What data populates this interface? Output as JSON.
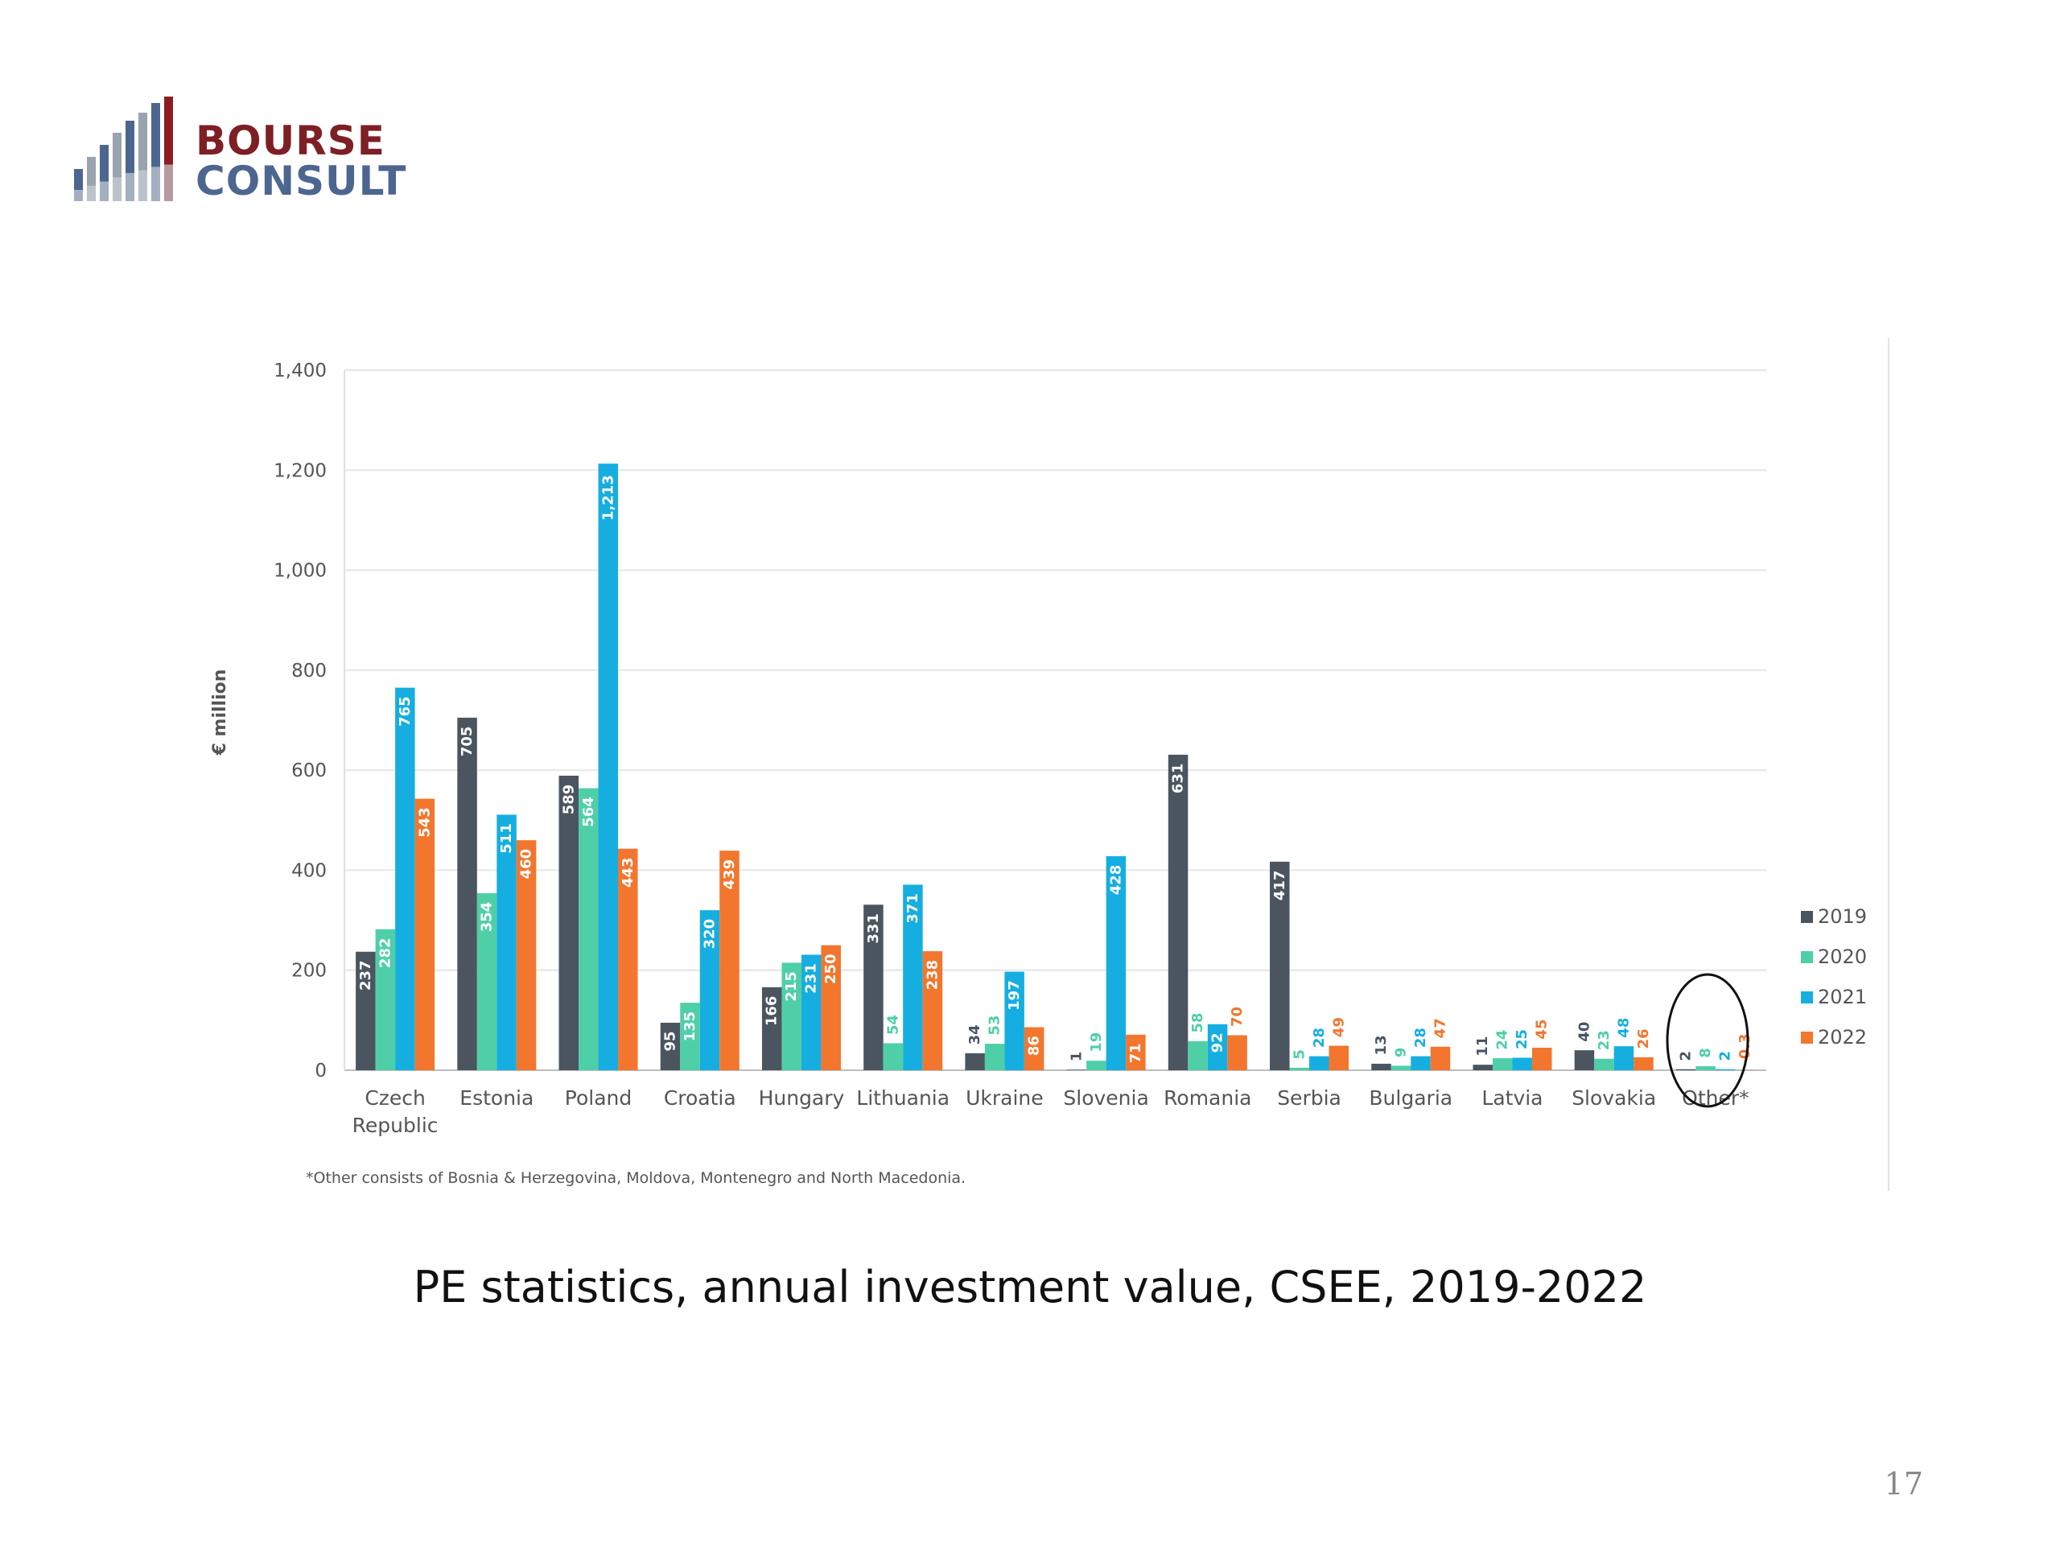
{
  "logo": {
    "line1": "BOURSE",
    "line2": "CONSULT",
    "bar_colors": [
      "#4d6690",
      "#9aa3b0",
      "#8c1c22"
    ]
  },
  "caption": "PE statistics, annual investment value, CSEE, 2019-2022",
  "page_number": "17",
  "chart_data": {
    "type": "bar",
    "title": "",
    "xlabel": "",
    "ylabel": "€ million",
    "ylim": [
      0,
      1400
    ],
    "yticks": [
      0,
      200,
      400,
      600,
      800,
      1000,
      1200,
      1400
    ],
    "ytick_labels": [
      "0",
      "200",
      "400",
      "600",
      "800",
      "1,000",
      "1,200",
      "1,400"
    ],
    "grid": true,
    "legend_position": "right",
    "categories": [
      [
        "Czech",
        "Republic"
      ],
      [
        "Estonia"
      ],
      [
        "Poland"
      ],
      [
        "Croatia"
      ],
      [
        "Hungary"
      ],
      [
        "Lithuania"
      ],
      [
        "Ukraine"
      ],
      [
        "Slovenia"
      ],
      [
        "Romania"
      ],
      [
        "Serbia"
      ],
      [
        "Bulgaria"
      ],
      [
        "Latvia"
      ],
      [
        "Slovakia"
      ],
      [
        "Other*"
      ]
    ],
    "series": [
      {
        "name": "2019",
        "color": "#4a5560",
        "values": [
          237,
          705,
          589,
          95,
          166,
          331,
          34,
          1,
          631,
          417,
          13,
          11,
          40,
          2
        ],
        "labels": [
          "237",
          "705",
          "589",
          "95",
          "166",
          "331",
          "34",
          "1",
          "631",
          "417",
          "13",
          "11",
          "40",
          "2"
        ]
      },
      {
        "name": "2020",
        "color": "#4fcfa8",
        "values": [
          282,
          354,
          564,
          135,
          215,
          54,
          53,
          19,
          58,
          5,
          9,
          24,
          23,
          8
        ],
        "labels": [
          "282",
          "354",
          "564",
          "135",
          "215",
          "54",
          "53",
          "19",
          "58",
          "5",
          "9",
          "24",
          "23",
          "8"
        ]
      },
      {
        "name": "2021",
        "color": "#16aee0",
        "values": [
          765,
          511,
          1213,
          320,
          231,
          371,
          197,
          428,
          92,
          28,
          28,
          25,
          48,
          2
        ],
        "labels": [
          "765",
          "511",
          "1,213",
          "320",
          "231",
          "371",
          "197",
          "428",
          "92",
          "28",
          "28",
          "25",
          "48",
          "2"
        ]
      },
      {
        "name": "2022",
        "color": "#f2762e",
        "values": [
          543,
          460,
          443,
          439,
          250,
          238,
          86,
          71,
          70,
          49,
          47,
          45,
          26,
          0.3
        ],
        "labels": [
          "543",
          "460",
          "443",
          "439",
          "250",
          "238",
          "86",
          "71",
          "70",
          "49",
          "47",
          "45",
          "26",
          "0.3"
        ]
      }
    ],
    "footnote": "*Other consists of Bosnia & Herzegovina, Moldova, Montenegro and North Macedonia."
  }
}
